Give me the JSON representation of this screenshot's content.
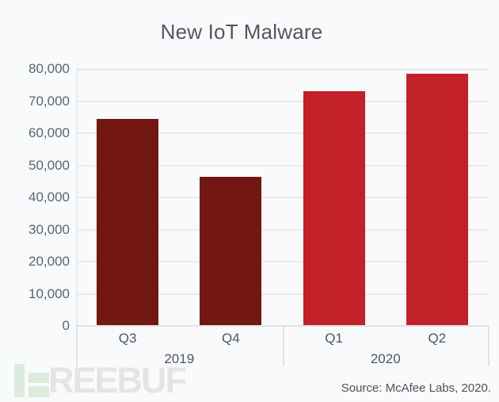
{
  "title": "New IoT Malware",
  "chart_data": {
    "type": "bar",
    "title": "New IoT Malware",
    "categories": [
      "Q3 2019",
      "Q4 2019",
      "Q1 2020",
      "Q2 2020"
    ],
    "values": [
      64400,
      46400,
      73100,
      78500
    ],
    "bars": [
      {
        "category": "Q3",
        "year": "2019",
        "value": 64400,
        "color": "#721712"
      },
      {
        "category": "Q4",
        "year": "2019",
        "value": 46400,
        "color": "#721712"
      },
      {
        "category": "Q1",
        "year": "2020",
        "value": 73100,
        "color": "#c2212a"
      },
      {
        "category": "Q2",
        "year": "2020",
        "value": 78500,
        "color": "#c2212a"
      }
    ],
    "year_groups": [
      {
        "label": "2019",
        "start_index": 0,
        "end_index": 2
      },
      {
        "label": "2020",
        "start_index": 2,
        "end_index": 4
      }
    ],
    "xlabel": "",
    "ylabel": "",
    "ylim": [
      0,
      80000
    ],
    "yticks": [
      0,
      10000,
      20000,
      30000,
      40000,
      50000,
      60000,
      70000,
      80000
    ],
    "ytick_labels": [
      "0",
      "10,000",
      "20,000",
      "30,000",
      "40,000",
      "50,000",
      "60,000",
      "70,000",
      "80,000"
    ],
    "grid": true,
    "legend_position": "none"
  },
  "source_note": "Source: McAfee Labs, 2020.",
  "watermark": {
    "text": "REEBUF"
  },
  "colors": {
    "background": "#f9fafb",
    "bar_2019": "#721712",
    "bar_2020": "#c2212a",
    "gridline": "#e8eaed",
    "axis_line": "#e0e2e6",
    "title_text": "#53565c",
    "axis_text": "#5b6374",
    "watermark_green": "#dcebdc",
    "watermark_gray": "#e3e4e6"
  }
}
